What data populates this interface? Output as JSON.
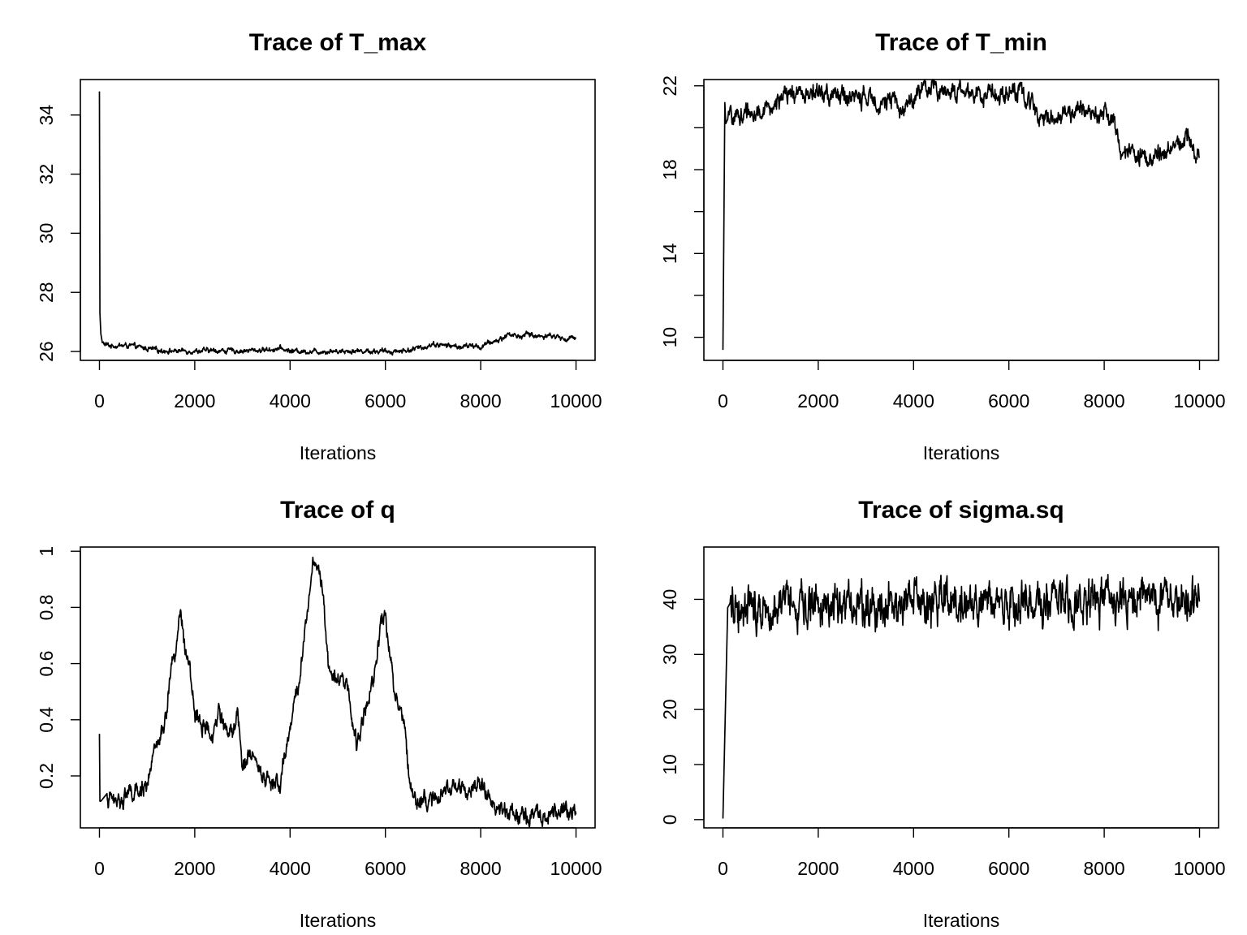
{
  "chart_data": [
    {
      "type": "line",
      "title": "Trace of T_max",
      "xlabel": "Iterations",
      "ylabel": "",
      "xlim": [
        -400,
        10400
      ],
      "ylim": [
        25.7,
        35.2
      ],
      "xticks": [
        0,
        2000,
        4000,
        6000,
        8000,
        10000
      ],
      "yticks": [
        26,
        28,
        30,
        32,
        34
      ],
      "x": [
        0,
        10,
        30,
        60,
        100,
        200,
        400,
        600,
        800,
        1000,
        1200,
        1500,
        2000,
        2500,
        3000,
        3400,
        3800,
        4000,
        4500,
        5000,
        5500,
        6000,
        6300,
        6500,
        6800,
        7000,
        7300,
        7600,
        7800,
        8000,
        8200,
        8400,
        8600,
        8800,
        9000,
        9200,
        9400,
        9600,
        9800,
        10000
      ],
      "y": [
        34.8,
        27.3,
        26.6,
        26.3,
        26.25,
        26.2,
        26.2,
        26.2,
        26.15,
        26.1,
        26.05,
        26.02,
        26.02,
        26.03,
        26.02,
        26.05,
        26.1,
        26.02,
        26.0,
        26.02,
        26.02,
        26.0,
        26.02,
        26.05,
        26.15,
        26.25,
        26.2,
        26.15,
        26.2,
        26.15,
        26.3,
        26.4,
        26.6,
        26.5,
        26.6,
        26.5,
        26.55,
        26.5,
        26.4,
        26.5
      ],
      "noise": 0.06
    },
    {
      "type": "line",
      "title": "Trace of T_min",
      "xlabel": "Iterations",
      "ylabel": "",
      "xlim": [
        -400,
        10400
      ],
      "ylim": [
        8.9,
        22.3
      ],
      "xticks": [
        0,
        2000,
        4000,
        6000,
        8000,
        10000
      ],
      "yticks": [
        10,
        14,
        18,
        22
      ],
      "yticks_minor": [
        12,
        16,
        20
      ],
      "x": [
        0,
        40,
        60,
        100,
        200,
        400,
        600,
        800,
        1000,
        1200,
        1500,
        1800,
        2000,
        2500,
        3000,
        3300,
        3600,
        3800,
        4000,
        4200,
        4500,
        5000,
        5500,
        6000,
        6300,
        6500,
        6700,
        7000,
        7300,
        7600,
        7800,
        8000,
        8200,
        8300,
        8400,
        8600,
        8800,
        9000,
        9200,
        9400,
        9600,
        9800,
        10000
      ],
      "y": [
        9.4,
        21.2,
        20.2,
        20.4,
        20.5,
        20.6,
        20.8,
        20.7,
        21.0,
        21.3,
        21.6,
        21.7,
        21.6,
        21.5,
        21.4,
        21.3,
        21.2,
        20.9,
        21.5,
        21.8,
        21.85,
        21.7,
        21.6,
        21.75,
        21.6,
        21.1,
        20.6,
        20.5,
        20.7,
        20.8,
        20.9,
        20.8,
        20.2,
        19.5,
        18.9,
        18.7,
        18.6,
        18.5,
        18.8,
        19.2,
        19.3,
        19.5,
        18.7
      ],
      "noise": 0.32
    },
    {
      "type": "line",
      "title": "Trace of q",
      "xlabel": "Iterations",
      "ylabel": "",
      "xlim": [
        -400,
        10400
      ],
      "ylim": [
        0.015,
        1.015
      ],
      "xticks": [
        0,
        2000,
        4000,
        6000,
        8000,
        10000
      ],
      "yticks": [
        0.2,
        0.4,
        0.6,
        0.8,
        1.0
      ],
      "x": [
        0,
        10,
        30,
        200,
        400,
        600,
        800,
        1000,
        1200,
        1400,
        1500,
        1600,
        1700,
        1800,
        1900,
        2000,
        2200,
        2400,
        2500,
        2600,
        2800,
        2900,
        3000,
        3200,
        3400,
        3600,
        3800,
        4000,
        4200,
        4400,
        4500,
        4600,
        4700,
        4800,
        5000,
        5200,
        5400,
        5600,
        5800,
        5900,
        6000,
        6100,
        6200,
        6400,
        6500,
        6600,
        6800,
        7000,
        7200,
        7500,
        7700,
        8000,
        8100,
        8300,
        8500,
        8700,
        9000,
        9300,
        9500,
        9700,
        9800,
        10000
      ],
      "y": [
        0.35,
        0.11,
        0.11,
        0.12,
        0.11,
        0.14,
        0.13,
        0.18,
        0.3,
        0.4,
        0.6,
        0.65,
        0.8,
        0.62,
        0.6,
        0.4,
        0.38,
        0.32,
        0.45,
        0.38,
        0.34,
        0.45,
        0.22,
        0.3,
        0.2,
        0.18,
        0.17,
        0.38,
        0.55,
        0.85,
        0.98,
        0.95,
        0.85,
        0.6,
        0.55,
        0.52,
        0.3,
        0.45,
        0.6,
        0.75,
        0.78,
        0.62,
        0.5,
        0.38,
        0.2,
        0.13,
        0.11,
        0.11,
        0.14,
        0.17,
        0.15,
        0.17,
        0.14,
        0.09,
        0.07,
        0.06,
        0.06,
        0.07,
        0.07,
        0.08,
        0.09,
        0.06
      ],
      "noise": 0.022
    },
    {
      "type": "line",
      "title": "Trace of sigma.sq",
      "xlabel": "Iterations",
      "ylabel": "",
      "xlim": [
        -400,
        10400
      ],
      "ylim": [
        -1.5,
        49.5
      ],
      "xticks": [
        0,
        2000,
        4000,
        6000,
        8000,
        10000
      ],
      "yticks": [
        0,
        10,
        20,
        30,
        40
      ],
      "x": [
        0,
        100,
        150,
        10000
      ],
      "y": [
        0.2,
        38.5,
        39.3,
        39.3
      ],
      "noise": 2.8
    }
  ]
}
